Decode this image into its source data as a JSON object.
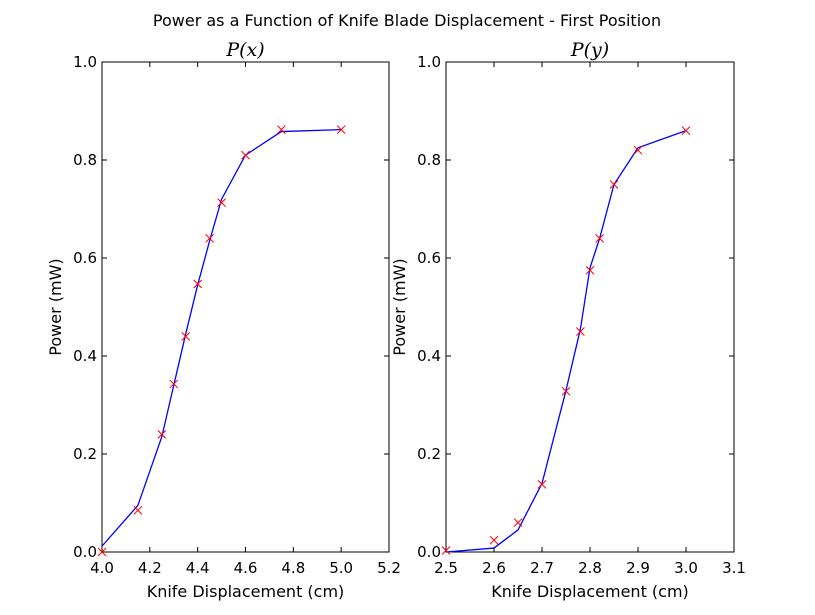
{
  "figure": {
    "title": "Power as a Function of Knife Blade Displacement - First Position"
  },
  "chart_data": [
    {
      "type": "line",
      "title": "P(x)",
      "xlabel": "Knife Displacement (cm)",
      "ylabel": "Power (mW)",
      "xlim": [
        4.0,
        5.2
      ],
      "ylim": [
        0.0,
        1.0
      ],
      "xticks": [
        "4.0",
        "4.2",
        "4.4",
        "4.6",
        "4.8",
        "5.0",
        "5.2"
      ],
      "yticks": [
        "0.0",
        "0.2",
        "0.4",
        "0.6",
        "0.8",
        "1.0"
      ],
      "grid": false,
      "series": [
        {
          "kind": "fit-line",
          "color": "#0000ff",
          "x": [
            4.0,
            4.15,
            4.25,
            4.3,
            4.35,
            4.4,
            4.45,
            4.5,
            4.6,
            4.75,
            5.0
          ],
          "y": [
            0.012,
            0.095,
            0.235,
            0.34,
            0.445,
            0.545,
            0.635,
            0.72,
            0.81,
            0.858,
            0.862
          ]
        },
        {
          "kind": "markers",
          "marker": "x",
          "color": "#ff0000",
          "x": [
            4.0,
            4.15,
            4.25,
            4.3,
            4.35,
            4.4,
            4.45,
            4.5,
            4.6,
            4.75,
            5.0
          ],
          "y": [
            0.0,
            0.085,
            0.24,
            0.343,
            0.44,
            0.547,
            0.64,
            0.713,
            0.81,
            0.862,
            0.862
          ]
        }
      ]
    },
    {
      "type": "line",
      "title": "P(y)",
      "xlabel": "Knife Displacement (cm)",
      "ylabel": "Power (mW)",
      "xlim": [
        2.5,
        3.1
      ],
      "ylim": [
        0.0,
        1.0
      ],
      "xticks": [
        "2.5",
        "2.6",
        "2.7",
        "2.8",
        "2.9",
        "3.0",
        "3.1"
      ],
      "yticks": [
        "0.0",
        "0.2",
        "0.4",
        "0.6",
        "0.8",
        "1.0"
      ],
      "grid": false,
      "series": [
        {
          "kind": "fit-line",
          "color": "#0000ff",
          "x": [
            2.5,
            2.6,
            2.65,
            2.7,
            2.75,
            2.78,
            2.8,
            2.82,
            2.85,
            2.9,
            3.0
          ],
          "y": [
            0.0,
            0.008,
            0.045,
            0.14,
            0.33,
            0.455,
            0.58,
            0.64,
            0.75,
            0.825,
            0.86
          ]
        },
        {
          "kind": "markers",
          "marker": "x",
          "color": "#ff0000",
          "x": [
            2.5,
            2.6,
            2.65,
            2.7,
            2.75,
            2.78,
            2.8,
            2.82,
            2.85,
            2.9,
            3.0
          ],
          "y": [
            0.003,
            0.024,
            0.06,
            0.138,
            0.328,
            0.45,
            0.575,
            0.64,
            0.75,
            0.82,
            0.86
          ]
        }
      ]
    }
  ]
}
